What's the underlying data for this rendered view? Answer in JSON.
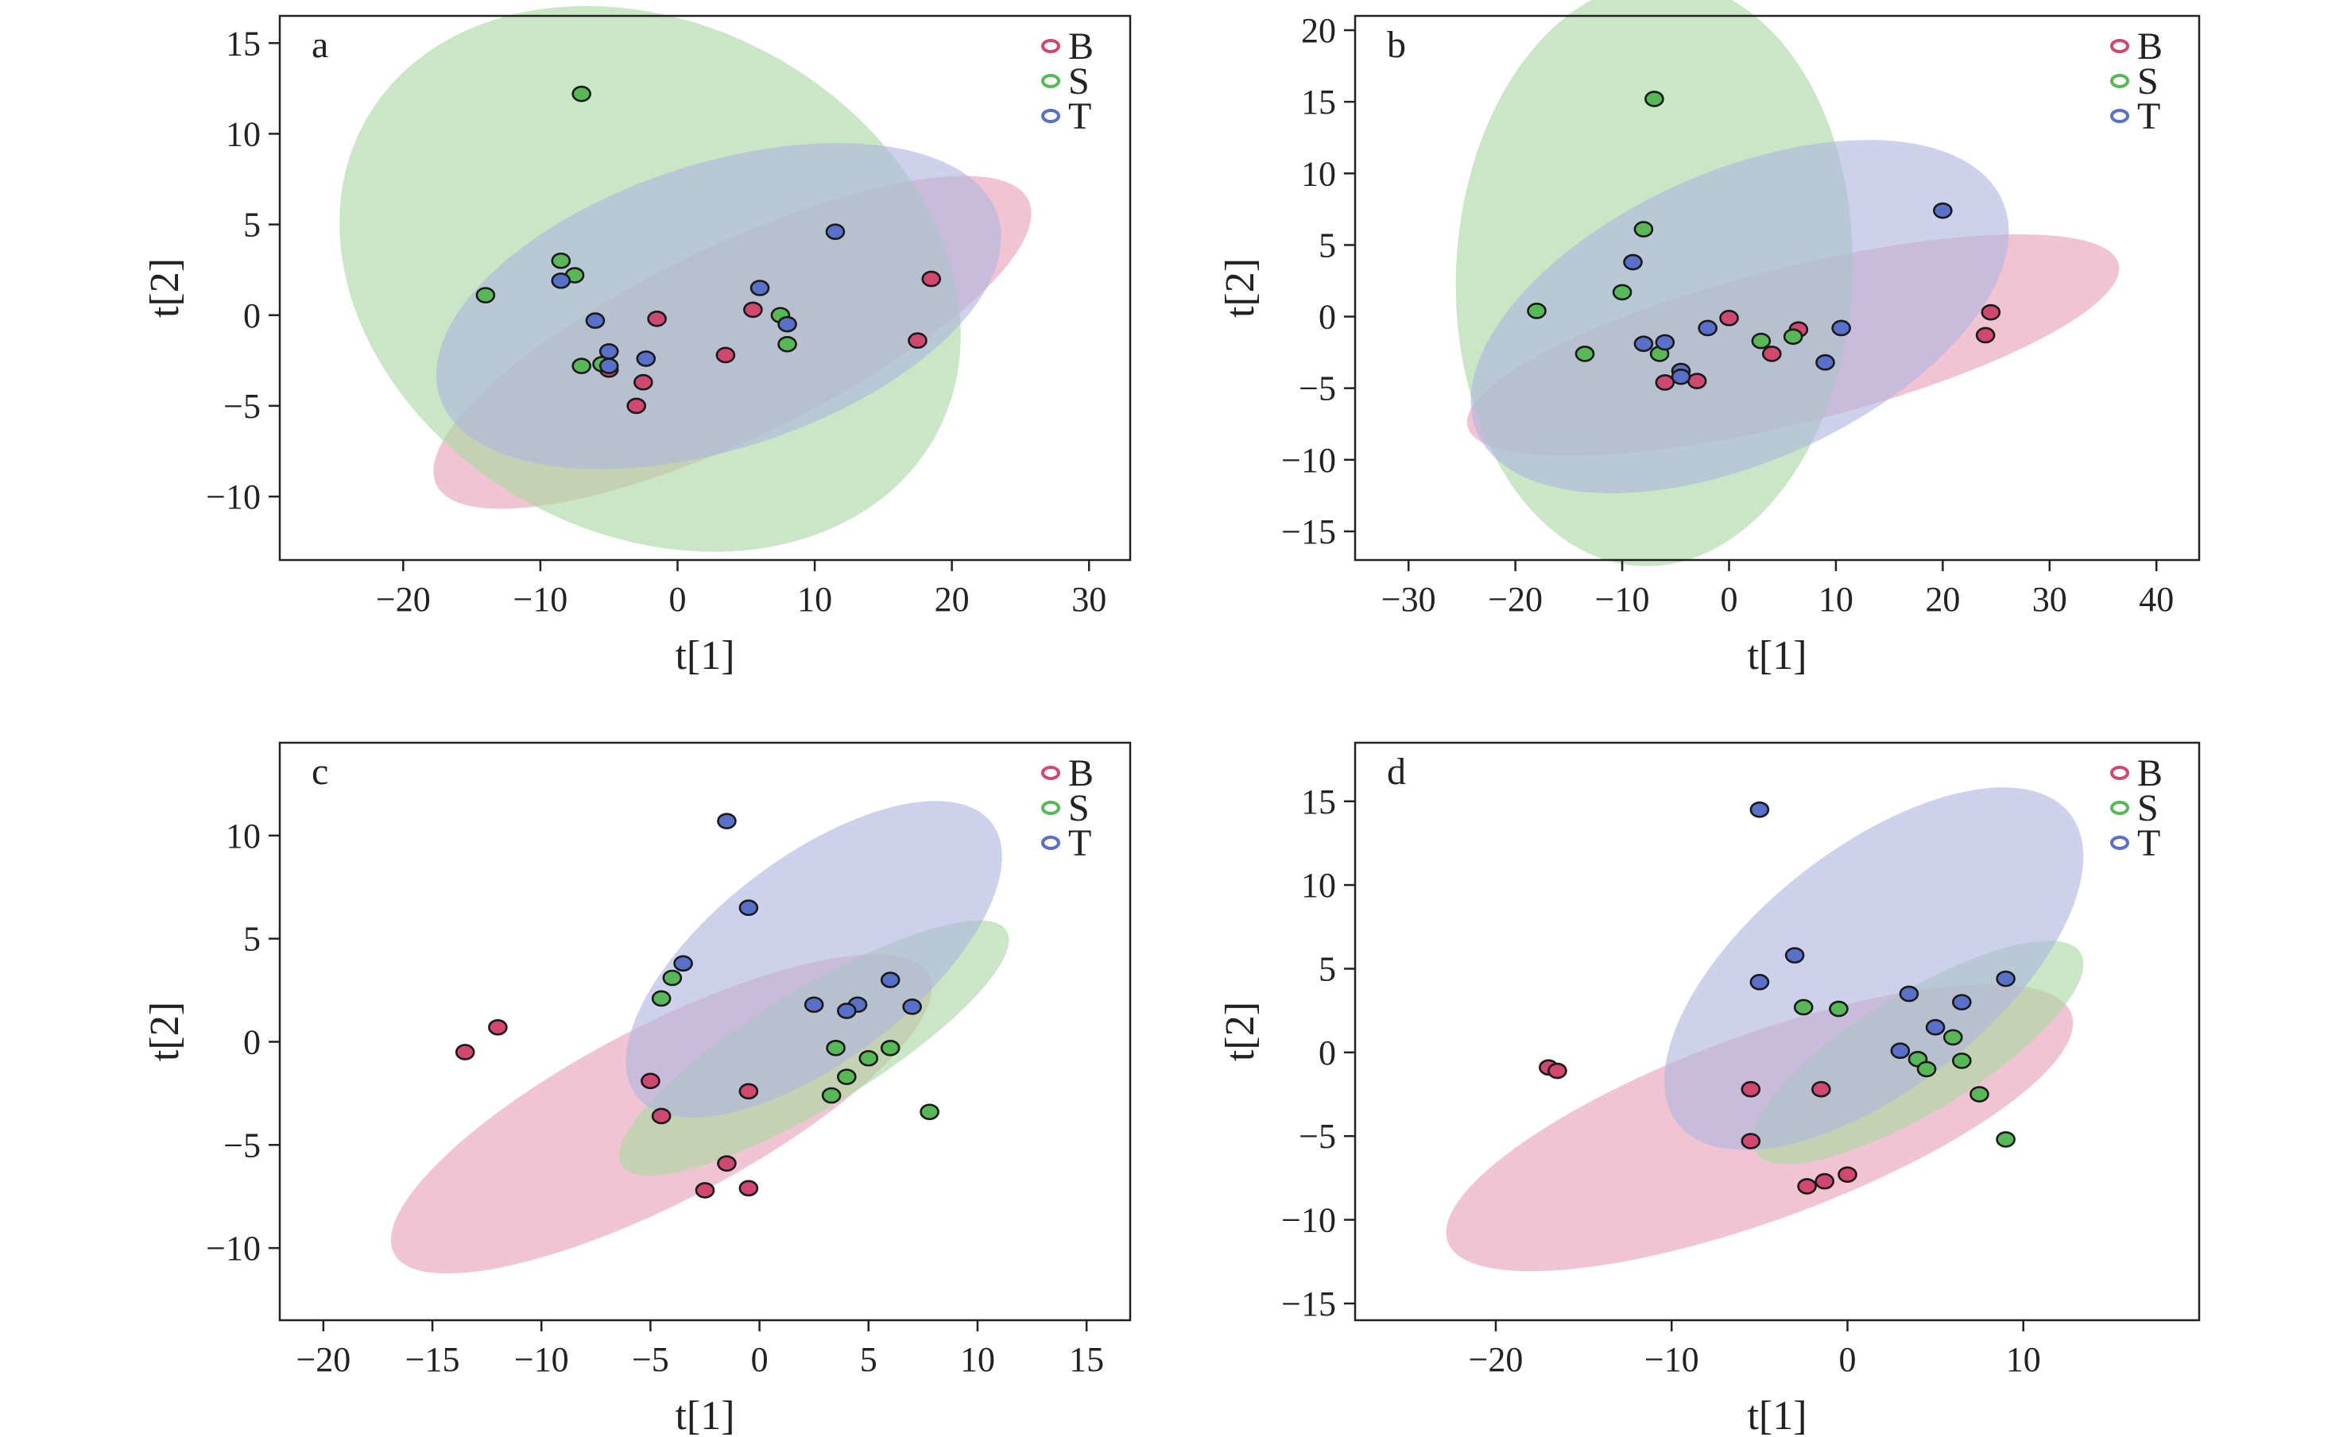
{
  "colors": {
    "B": {
      "fill": "#e8a0b8",
      "point": "#d04870"
    },
    "S": {
      "fill": "#a8d8a0",
      "point": "#58b858"
    },
    "T": {
      "fill": "#b0b4e0",
      "point": "#5870c8"
    }
  },
  "chart_data": [
    {
      "panel": "a",
      "type": "scatter",
      "xlabel": "t[1]",
      "ylabel": "t[2]",
      "xlim": [
        -29,
        33
      ],
      "ylim": [
        -13.5,
        16.5
      ],
      "xticks": [
        -20,
        -10,
        0,
        10,
        20,
        30
      ],
      "yticks": [
        -10,
        -5,
        0,
        5,
        10,
        15
      ],
      "legend": [
        "B",
        "S",
        "T"
      ],
      "legend_position": "top-right",
      "series": [
        {
          "name": "B",
          "ellipse": {
            "cx": 4,
            "cy": -1.5,
            "rx": 23,
            "ry": 5.5,
            "angle_deg": 19.2
          },
          "points": [
            [
              -5,
              -3
            ],
            [
              -2.5,
              -3.7
            ],
            [
              -3,
              -5
            ],
            [
              -1.5,
              -0.2
            ],
            [
              3.5,
              -2.2
            ],
            [
              5.5,
              0.3
            ],
            [
              17.5,
              -1.4
            ],
            [
              18.5,
              2
            ]
          ]
        },
        {
          "name": "S",
          "ellipse": {
            "cx": -2,
            "cy": 2,
            "rx": 23,
            "ry": 14.5,
            "angle_deg": -13
          },
          "points": [
            [
              -7,
              12.2
            ],
            [
              -8.5,
              3
            ],
            [
              -7.5,
              2.2
            ],
            [
              -14,
              1.1
            ],
            [
              -7,
              -2.8
            ],
            [
              -5.5,
              -2.7
            ],
            [
              7.5,
              0
            ],
            [
              8,
              -1.6
            ]
          ]
        },
        {
          "name": "T",
          "ellipse": {
            "cx": 3,
            "cy": 0.5,
            "rx": 21,
            "ry": 8,
            "angle_deg": 12.2
          },
          "points": [
            [
              -8.5,
              1.9
            ],
            [
              -6,
              -0.3
            ],
            [
              -5,
              -2
            ],
            [
              -5,
              -2.8
            ],
            [
              -2.3,
              -2.4
            ],
            [
              6,
              1.5
            ],
            [
              8,
              -0.5
            ],
            [
              11.5,
              4.6
            ]
          ]
        }
      ]
    },
    {
      "panel": "b",
      "type": "scatter",
      "xlabel": "t[1]",
      "ylabel": "t[2]",
      "xlim": [
        -35,
        44
      ],
      "ylim": [
        -17,
        21
      ],
      "xticks": [
        -30,
        -20,
        -10,
        0,
        10,
        20,
        30,
        40
      ],
      "yticks": [
        -15,
        -10,
        -5,
        0,
        5,
        10,
        15,
        20
      ],
      "legend": [
        "B",
        "S",
        "T"
      ],
      "legend_position": "top-right",
      "series": [
        {
          "name": "B",
          "ellipse": {
            "cx": 6,
            "cy": -2,
            "rx": 31,
            "ry": 5.5,
            "angle_deg": 10.3
          },
          "points": [
            [
              -6,
              -4.6
            ],
            [
              -3,
              -4.5
            ],
            [
              0,
              -0.1
            ],
            [
              4,
              -2.6
            ],
            [
              6.5,
              -0.9
            ],
            [
              24.5,
              0.3
            ],
            [
              24,
              -1.3
            ]
          ]
        },
        {
          "name": "S",
          "ellipse": {
            "cx": -7,
            "cy": 3,
            "rx": 18.5,
            "ry": 20.5,
            "angle_deg": -11
          },
          "points": [
            [
              -7,
              15.2
            ],
            [
              -8,
              6.1
            ],
            [
              -10,
              1.7
            ],
            [
              -18,
              0.4
            ],
            [
              -13.5,
              -2.6
            ],
            [
              -6.5,
              -2.6
            ],
            [
              3,
              -1.7
            ],
            [
              6,
              -1.4
            ]
          ]
        },
        {
          "name": "T",
          "ellipse": {
            "cx": 1,
            "cy": 0,
            "rx": 26,
            "ry": 10.5,
            "angle_deg": 15.8
          },
          "points": [
            [
              -9,
              3.8
            ],
            [
              -8,
              -1.9
            ],
            [
              -6,
              -1.8
            ],
            [
              -2,
              -0.8
            ],
            [
              -4.5,
              -3.8
            ],
            [
              -4.5,
              -4.2
            ],
            [
              9,
              -3.2
            ],
            [
              10.5,
              -0.8
            ],
            [
              20,
              7.4
            ]
          ]
        }
      ]
    },
    {
      "panel": "c",
      "type": "scatter",
      "xlabel": "t[1]",
      "ylabel": "t[2]",
      "xlim": [
        -22,
        17
      ],
      "ylim": [
        -13.5,
        14.5
      ],
      "xticks": [
        -20,
        -15,
        -10,
        -5,
        0,
        5,
        10,
        15
      ],
      "yticks": [
        -10,
        -5,
        0,
        5,
        10
      ],
      "legend": [
        "B",
        "S",
        "T"
      ],
      "legend_position": "top-right",
      "series": [
        {
          "name": "B",
          "ellipse": {
            "cx": -4.5,
            "cy": -3.5,
            "rx": 14,
            "ry": 4.2,
            "angle_deg": 29.1
          },
          "points": [
            [
              -13.5,
              -0.5
            ],
            [
              -12,
              0.7
            ],
            [
              -5,
              -1.9
            ],
            [
              -4.5,
              -3.6
            ],
            [
              -0.5,
              -2.4
            ],
            [
              -1.5,
              -5.9
            ],
            [
              -2.5,
              -7.2
            ],
            [
              -0.5,
              -7.1
            ]
          ]
        },
        {
          "name": "S",
          "ellipse": {
            "cx": 2.5,
            "cy": -0.3,
            "rx": 10.5,
            "ry": 2.8,
            "angle_deg": 33
          },
          "points": [
            [
              -4,
              3.1
            ],
            [
              -4.5,
              2.1
            ],
            [
              3.5,
              -0.3
            ],
            [
              5,
              -0.8
            ],
            [
              6,
              -0.3
            ],
            [
              4,
              -1.7
            ],
            [
              3.3,
              -2.6
            ],
            [
              7.8,
              -3.4
            ]
          ]
        },
        {
          "name": "T",
          "ellipse": {
            "cx": 2.5,
            "cy": 4,
            "rx": 10.5,
            "ry": 4.8,
            "angle_deg": 39.9
          },
          "points": [
            [
              -1.5,
              10.7
            ],
            [
              -0.5,
              6.5
            ],
            [
              -3.5,
              3.8
            ],
            [
              2.5,
              1.8
            ],
            [
              4.5,
              1.8
            ],
            [
              4,
              1.5
            ],
            [
              6,
              3
            ],
            [
              7,
              1.7
            ]
          ]
        }
      ]
    },
    {
      "panel": "d",
      "type": "scatter",
      "xlabel": "t[1]",
      "ylabel": "t[2]",
      "xlim": [
        -28,
        20
      ],
      "ylim": [
        -16,
        18.5
      ],
      "xticks": [
        -20,
        -10,
        0,
        10
      ],
      "yticks": [
        -15,
        -10,
        -5,
        0,
        5,
        10,
        15
      ],
      "legend": [
        "B",
        "S",
        "T"
      ],
      "legend_position": "top-right",
      "series": [
        {
          "name": "B",
          "ellipse": {
            "cx": -5,
            "cy": -4.5,
            "rx": 19,
            "ry": 5.5,
            "angle_deg": 21.2
          },
          "points": [
            [
              -17,
              -0.9
            ],
            [
              -16.5,
              -1.1
            ],
            [
              -5.5,
              -2.2
            ],
            [
              -1.5,
              -2.2
            ],
            [
              -5.5,
              -5.3
            ],
            [
              -2.3,
              -8
            ],
            [
              -1.3,
              -7.7
            ],
            [
              0,
              -7.3
            ]
          ]
        },
        {
          "name": "S",
          "ellipse": {
            "cx": 4,
            "cy": 0,
            "rx": 11,
            "ry": 3.5,
            "angle_deg": 33
          },
          "points": [
            [
              -2.5,
              2.7
            ],
            [
              -0.5,
              2.6
            ],
            [
              4,
              -0.4
            ],
            [
              4.5,
              -1
            ],
            [
              6,
              0.9
            ],
            [
              6.5,
              -0.5
            ],
            [
              7.5,
              -2.5
            ],
            [
              9,
              -5.2
            ]
          ]
        },
        {
          "name": "T",
          "ellipse": {
            "cx": 1.5,
            "cy": 5,
            "rx": 14.5,
            "ry": 7,
            "angle_deg": 40.6
          },
          "points": [
            [
              -5,
              14.5
            ],
            [
              -3,
              5.8
            ],
            [
              -5,
              4.2
            ],
            [
              3,
              0.1
            ],
            [
              3.5,
              3.5
            ],
            [
              5,
              1.5
            ],
            [
              6.5,
              3
            ],
            [
              9,
              4.4
            ]
          ]
        }
      ]
    }
  ]
}
